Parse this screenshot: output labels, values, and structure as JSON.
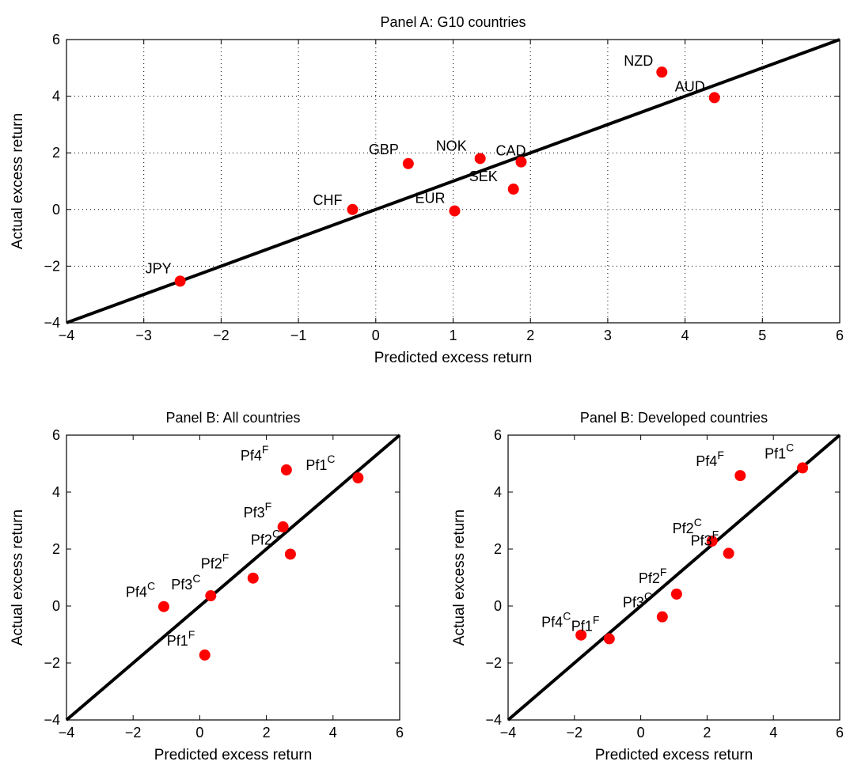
{
  "chart_data": [
    {
      "type": "scatter",
      "title": "Panel A: G10 countries",
      "xlabel": "Predicted excess return",
      "ylabel": "Actual excess return",
      "xlim": [
        -4,
        6
      ],
      "ylim": [
        -4,
        6
      ],
      "xticks": [
        -4,
        -3,
        -2,
        -1,
        0,
        1,
        2,
        3,
        4,
        5,
        6
      ],
      "yticks": [
        -4,
        -2,
        0,
        2,
        4,
        6
      ],
      "grid": true,
      "fit_line": [
        [
          -4,
          -4
        ],
        [
          6,
          6
        ]
      ],
      "points": [
        {
          "label": "NZD",
          "x": 3.7,
          "y": 4.85
        },
        {
          "label": "AUD",
          "x": 4.38,
          "y": 3.95
        },
        {
          "label": "NOK",
          "x": 1.35,
          "y": 1.8
        },
        {
          "label": "CAD",
          "x": 1.88,
          "y": 1.68
        },
        {
          "label": "GBP",
          "x": 0.42,
          "y": 1.62
        },
        {
          "label": "SEK",
          "x": 1.78,
          "y": 0.72
        },
        {
          "label": "CHF",
          "x": -0.3,
          "y": 0.0
        },
        {
          "label": "EUR",
          "x": 1.02,
          "y": -0.05
        },
        {
          "label": "JPY",
          "x": -2.53,
          "y": -2.53
        }
      ]
    },
    {
      "type": "scatter",
      "title": "Panel B: All countries",
      "xlabel": "Predicted excess return",
      "ylabel": "Actual excess return",
      "xlim": [
        -4,
        6
      ],
      "ylim": [
        -4,
        6
      ],
      "xticks": [
        -4,
        -2,
        0,
        2,
        4,
        6
      ],
      "yticks": [
        -4,
        -2,
        0,
        2,
        4,
        6
      ],
      "grid": false,
      "fit_line": [
        [
          -4,
          -4
        ],
        [
          6,
          6
        ]
      ],
      "points": [
        {
          "label": "Pf4",
          "sup": "F",
          "x": 2.6,
          "y": 4.78
        },
        {
          "label": "Pf1",
          "sup": "C",
          "x": 4.75,
          "y": 4.5
        },
        {
          "label": "Pf3",
          "sup": "F",
          "x": 2.5,
          "y": 2.78
        },
        {
          "label": "Pf2",
          "sup": "C",
          "x": 2.72,
          "y": 1.82
        },
        {
          "label": "Pf2",
          "sup": "F",
          "x": 1.6,
          "y": 0.98
        },
        {
          "label": "Pf3",
          "sup": "C",
          "x": 0.33,
          "y": 0.36
        },
        {
          "label": "Pf4",
          "sup": "C",
          "x": -1.08,
          "y": -0.02
        },
        {
          "label": "Pf1",
          "sup": "F",
          "x": 0.15,
          "y": -1.72
        }
      ]
    },
    {
      "type": "scatter",
      "title": "Panel B: Developed countries",
      "xlabel": "Predicted excess return",
      "ylabel": "Actual excess return",
      "xlim": [
        -4,
        6
      ],
      "ylim": [
        -4,
        6
      ],
      "xticks": [
        -4,
        -2,
        0,
        2,
        4,
        6
      ],
      "yticks": [
        -4,
        -2,
        0,
        2,
        4,
        6
      ],
      "grid": false,
      "fit_line": [
        [
          -4,
          -4
        ],
        [
          6,
          6
        ]
      ],
      "points": [
        {
          "label": "Pf1",
          "sup": "C",
          "x": 4.88,
          "y": 4.85
        },
        {
          "label": "Pf4",
          "sup": "F",
          "x": 3.0,
          "y": 4.58
        },
        {
          "label": "Pf2",
          "sup": "C",
          "x": 2.15,
          "y": 2.28
        },
        {
          "label": "Pf3",
          "sup": "F",
          "x": 2.65,
          "y": 1.85
        },
        {
          "label": "Pf2",
          "sup": "F",
          "x": 1.08,
          "y": 0.42
        },
        {
          "label": "Pf3",
          "sup": "C",
          "x": 0.65,
          "y": -0.38
        },
        {
          "label": "Pf4",
          "sup": "C",
          "x": -1.8,
          "y": -1.02
        },
        {
          "label": "Pf1",
          "sup": "F",
          "x": -0.95,
          "y": -1.15
        }
      ]
    }
  ]
}
